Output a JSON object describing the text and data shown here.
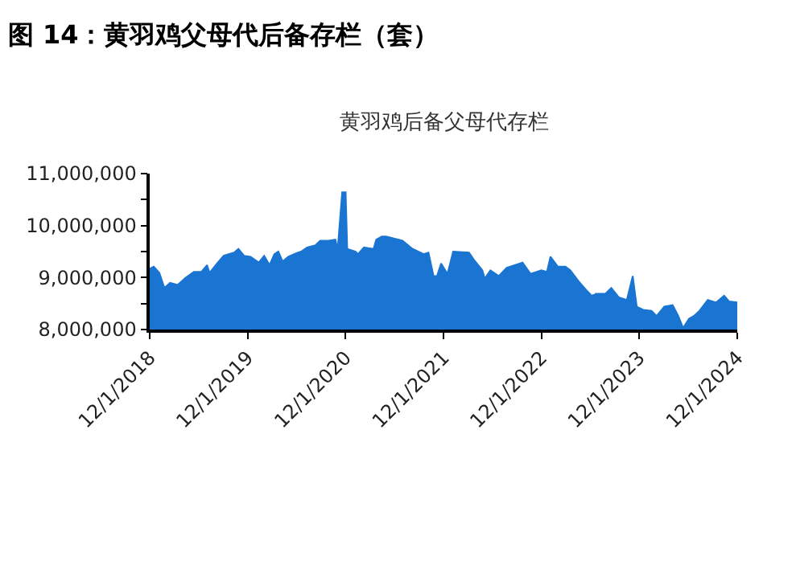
{
  "chart_data": {
    "type": "area",
    "title": "图 14：黄羽鸡父母代后备存栏（套）",
    "subtitle": "黄羽鸡后备父母代存栏",
    "x": [
      "2018-12-01",
      "2018-12-16",
      "2019-01-06",
      "2019-01-25",
      "2019-02-15",
      "2019-03-15",
      "2019-04-15",
      "2019-05-15",
      "2019-06-12",
      "2019-07-03",
      "2019-07-12",
      "2019-08-12",
      "2019-09-03",
      "2019-10-12",
      "2019-10-28",
      "2019-11-18",
      "2019-12-12",
      "2020-01-12",
      "2020-02-01",
      "2020-02-21",
      "2020-03-10",
      "2020-03-25",
      "2020-04-10",
      "2020-05-01",
      "2020-06-01",
      "2020-06-18",
      "2020-07-10",
      "2020-08-10",
      "2020-08-28",
      "2020-09-28",
      "2020-10-24",
      "2020-11-01",
      "2020-11-18",
      "2020-12-01",
      "2020-12-07",
      "2021-01-07",
      "2021-01-16",
      "2021-02-07",
      "2021-03-15",
      "2021-03-25",
      "2021-04-15",
      "2021-05-01",
      "2021-07-01",
      "2021-08-08",
      "2021-09-18",
      "2021-10-06",
      "2021-10-25",
      "2021-11-07",
      "2021-11-22",
      "2021-12-16",
      "2022-01-06",
      "2022-03-06",
      "2022-03-25",
      "2022-04-25",
      "2022-05-04",
      "2022-05-25",
      "2022-06-25",
      "2022-07-25",
      "2022-09-22",
      "2022-10-22",
      "2022-12-01",
      "2022-12-22",
      "2023-01-04",
      "2023-02-01",
      "2023-03-01",
      "2023-03-19",
      "2023-04-19",
      "2023-05-19",
      "2023-06-04",
      "2023-06-10",
      "2023-06-19",
      "2023-07-28",
      "2023-08-19",
      "2023-09-16",
      "2023-10-16",
      "2023-11-07",
      "2023-11-22",
      "2023-12-16",
      "2024-01-16",
      "2024-02-04",
      "2024-03-04",
      "2024-04-04",
      "2024-04-25",
      "2024-05-13",
      "2024-06-04",
      "2024-06-22",
      "2024-07-13",
      "2024-08-13",
      "2024-09-13",
      "2024-10-13",
      "2024-11-01",
      "2024-12-01"
    ],
    "series": [
      {
        "color": "#1a75d2",
        "values": [
          9170000,
          9210000,
          9090000,
          8800000,
          8900000,
          8860000,
          9000000,
          9110000,
          9110000,
          9240000,
          9090000,
          9290000,
          9420000,
          9480000,
          9550000,
          9420000,
          9400000,
          9290000,
          9420000,
          9240000,
          9450000,
          9500000,
          9310000,
          9400000,
          9470000,
          9500000,
          9580000,
          9620000,
          9710000,
          9710000,
          9730000,
          9530000,
          10640000,
          10640000,
          9550000,
          9500000,
          9450000,
          9580000,
          9550000,
          9730000,
          9790000,
          9790000,
          9710000,
          9550000,
          9450000,
          9480000,
          9030000,
          9030000,
          9270000,
          9070000,
          9500000,
          9480000,
          9340000,
          9140000,
          8980000,
          9140000,
          9030000,
          9190000,
          9290000,
          9070000,
          9140000,
          9110000,
          9400000,
          9210000,
          9210000,
          9140000,
          8930000,
          8750000,
          8670000,
          null,
          8690000,
          8690000,
          8800000,
          8620000,
          8570000,
          9030000,
          8440000,
          8380000,
          8360000,
          8260000,
          8440000,
          8470000,
          8260000,
          8030000,
          8210000,
          8260000,
          8360000,
          8570000,
          8520000,
          8650000,
          8540000,
          8520000
        ]
      }
    ],
    "xlim": [
      "2018-12-01",
      "2024-12-01"
    ],
    "xticks": [
      {
        "value": "2018-12-01",
        "label": "12/1/2018"
      },
      {
        "value": "2019-12-01",
        "label": "12/1/2019"
      },
      {
        "value": "2020-12-01",
        "label": "12/1/2020"
      },
      {
        "value": "2021-12-01",
        "label": "12/1/2021"
      },
      {
        "value": "2022-12-01",
        "label": "12/1/2022"
      },
      {
        "value": "2023-12-01",
        "label": "12/1/2023"
      },
      {
        "value": "2024-12-01",
        "label": "12/1/2024"
      }
    ],
    "ylim": [
      8000000,
      11000000
    ],
    "yticks": [
      {
        "value": 8000000,
        "label": "8,000,000"
      },
      {
        "value": 8500000,
        "label": null
      },
      {
        "value": 9000000,
        "label": "9,000,000"
      },
      {
        "value": 9500000,
        "label": null
      },
      {
        "value": 10000000,
        "label": "10,000,000"
      },
      {
        "value": 10500000,
        "label": null
      },
      {
        "value": 11000000,
        "label": "11,000,000"
      }
    ]
  }
}
